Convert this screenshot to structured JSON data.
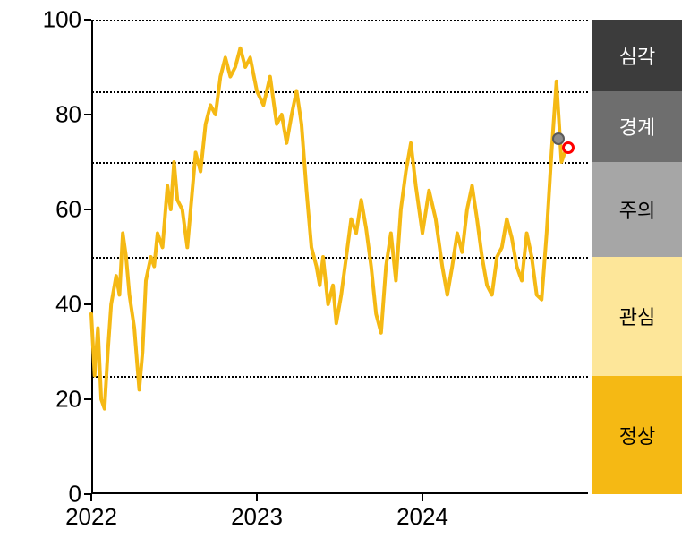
{
  "chart": {
    "type": "line",
    "background_color": "#ffffff",
    "axis_color": "#000000",
    "grid_style": "dotted",
    "grid_color": "#000000",
    "line_color": "#f5b914",
    "line_width": 4,
    "tick_fontsize": 26,
    "legend_fontsize": 22,
    "ylim": [
      0,
      100
    ],
    "yticks": [
      0,
      20,
      40,
      60,
      80,
      100
    ],
    "ytick_labels": [
      "0",
      "20",
      "40",
      "60",
      "80",
      "100"
    ],
    "xlim": [
      2022,
      2025
    ],
    "xticks": [
      2022,
      2023,
      2024
    ],
    "xtick_labels": [
      "2022",
      "2023",
      "2024"
    ],
    "threshold_lines": [
      25,
      50,
      70,
      85,
      100
    ],
    "legend_bands": [
      {
        "label": "심각",
        "from": 85,
        "to": 100,
        "color": "#3c3c3c",
        "text_color": "#ffffff"
      },
      {
        "label": "경계",
        "from": 70,
        "to": 85,
        "color": "#6e6e6e",
        "text_color": "#ffffff"
      },
      {
        "label": "주의",
        "from": 50,
        "to": 70,
        "color": "#a6a6a6",
        "text_color": "#000000"
      },
      {
        "label": "관심",
        "from": 25,
        "to": 50,
        "color": "#fde699",
        "text_color": "#000000"
      },
      {
        "label": "정상",
        "from": 0,
        "to": 25,
        "color": "#f5b914",
        "text_color": "#000000"
      }
    ],
    "markers": [
      {
        "x": 2024.82,
        "y": 75,
        "fill": "#8c8c8c",
        "stroke": "#5a5a5a",
        "stroke_width": 2,
        "radius": 7
      },
      {
        "x": 2024.88,
        "y": 73,
        "fill": "#ffffff",
        "stroke": "#ff0000",
        "stroke_width": 3,
        "radius": 7
      }
    ],
    "series": [
      {
        "x": 2022.0,
        "y": 38
      },
      {
        "x": 2022.02,
        "y": 25
      },
      {
        "x": 2022.04,
        "y": 35
      },
      {
        "x": 2022.06,
        "y": 20
      },
      {
        "x": 2022.08,
        "y": 18
      },
      {
        "x": 2022.1,
        "y": 30
      },
      {
        "x": 2022.12,
        "y": 40
      },
      {
        "x": 2022.15,
        "y": 46
      },
      {
        "x": 2022.17,
        "y": 42
      },
      {
        "x": 2022.19,
        "y": 55
      },
      {
        "x": 2022.21,
        "y": 50
      },
      {
        "x": 2022.23,
        "y": 42
      },
      {
        "x": 2022.26,
        "y": 35
      },
      {
        "x": 2022.29,
        "y": 22
      },
      {
        "x": 2022.31,
        "y": 30
      },
      {
        "x": 2022.33,
        "y": 45
      },
      {
        "x": 2022.36,
        "y": 50
      },
      {
        "x": 2022.38,
        "y": 48
      },
      {
        "x": 2022.4,
        "y": 55
      },
      {
        "x": 2022.43,
        "y": 52
      },
      {
        "x": 2022.46,
        "y": 65
      },
      {
        "x": 2022.48,
        "y": 60
      },
      {
        "x": 2022.5,
        "y": 70
      },
      {
        "x": 2022.52,
        "y": 62
      },
      {
        "x": 2022.55,
        "y": 60
      },
      {
        "x": 2022.58,
        "y": 52
      },
      {
        "x": 2022.6,
        "y": 60
      },
      {
        "x": 2022.63,
        "y": 72
      },
      {
        "x": 2022.66,
        "y": 68
      },
      {
        "x": 2022.69,
        "y": 78
      },
      {
        "x": 2022.72,
        "y": 82
      },
      {
        "x": 2022.75,
        "y": 80
      },
      {
        "x": 2022.78,
        "y": 88
      },
      {
        "x": 2022.81,
        "y": 92
      },
      {
        "x": 2022.84,
        "y": 88
      },
      {
        "x": 2022.87,
        "y": 90
      },
      {
        "x": 2022.9,
        "y": 94
      },
      {
        "x": 2022.93,
        "y": 90
      },
      {
        "x": 2022.96,
        "y": 92
      },
      {
        "x": 2023.0,
        "y": 85
      },
      {
        "x": 2023.04,
        "y": 82
      },
      {
        "x": 2023.08,
        "y": 88
      },
      {
        "x": 2023.12,
        "y": 78
      },
      {
        "x": 2023.15,
        "y": 80
      },
      {
        "x": 2023.18,
        "y": 74
      },
      {
        "x": 2023.21,
        "y": 80
      },
      {
        "x": 2023.24,
        "y": 85
      },
      {
        "x": 2023.27,
        "y": 78
      },
      {
        "x": 2023.3,
        "y": 64
      },
      {
        "x": 2023.33,
        "y": 52
      },
      {
        "x": 2023.36,
        "y": 48
      },
      {
        "x": 2023.38,
        "y": 44
      },
      {
        "x": 2023.4,
        "y": 50
      },
      {
        "x": 2023.43,
        "y": 40
      },
      {
        "x": 2023.46,
        "y": 44
      },
      {
        "x": 2023.48,
        "y": 36
      },
      {
        "x": 2023.51,
        "y": 42
      },
      {
        "x": 2023.54,
        "y": 50
      },
      {
        "x": 2023.57,
        "y": 58
      },
      {
        "x": 2023.6,
        "y": 55
      },
      {
        "x": 2023.63,
        "y": 62
      },
      {
        "x": 2023.66,
        "y": 56
      },
      {
        "x": 2023.69,
        "y": 48
      },
      {
        "x": 2023.72,
        "y": 38
      },
      {
        "x": 2023.75,
        "y": 34
      },
      {
        "x": 2023.78,
        "y": 48
      },
      {
        "x": 2023.81,
        "y": 55
      },
      {
        "x": 2023.84,
        "y": 45
      },
      {
        "x": 2023.87,
        "y": 60
      },
      {
        "x": 2023.9,
        "y": 68
      },
      {
        "x": 2023.93,
        "y": 74
      },
      {
        "x": 2023.96,
        "y": 65
      },
      {
        "x": 2024.0,
        "y": 55
      },
      {
        "x": 2024.04,
        "y": 64
      },
      {
        "x": 2024.08,
        "y": 58
      },
      {
        "x": 2024.12,
        "y": 48
      },
      {
        "x": 2024.15,
        "y": 42
      },
      {
        "x": 2024.18,
        "y": 48
      },
      {
        "x": 2024.21,
        "y": 55
      },
      {
        "x": 2024.24,
        "y": 51
      },
      {
        "x": 2024.27,
        "y": 60
      },
      {
        "x": 2024.3,
        "y": 65
      },
      {
        "x": 2024.33,
        "y": 58
      },
      {
        "x": 2024.36,
        "y": 50
      },
      {
        "x": 2024.39,
        "y": 44
      },
      {
        "x": 2024.42,
        "y": 42
      },
      {
        "x": 2024.45,
        "y": 50
      },
      {
        "x": 2024.48,
        "y": 52
      },
      {
        "x": 2024.51,
        "y": 58
      },
      {
        "x": 2024.54,
        "y": 54
      },
      {
        "x": 2024.57,
        "y": 48
      },
      {
        "x": 2024.6,
        "y": 45
      },
      {
        "x": 2024.63,
        "y": 55
      },
      {
        "x": 2024.66,
        "y": 50
      },
      {
        "x": 2024.69,
        "y": 42
      },
      {
        "x": 2024.72,
        "y": 41
      },
      {
        "x": 2024.75,
        "y": 55
      },
      {
        "x": 2024.78,
        "y": 72
      },
      {
        "x": 2024.81,
        "y": 87
      },
      {
        "x": 2024.84,
        "y": 70
      },
      {
        "x": 2024.87,
        "y": 73
      }
    ]
  }
}
